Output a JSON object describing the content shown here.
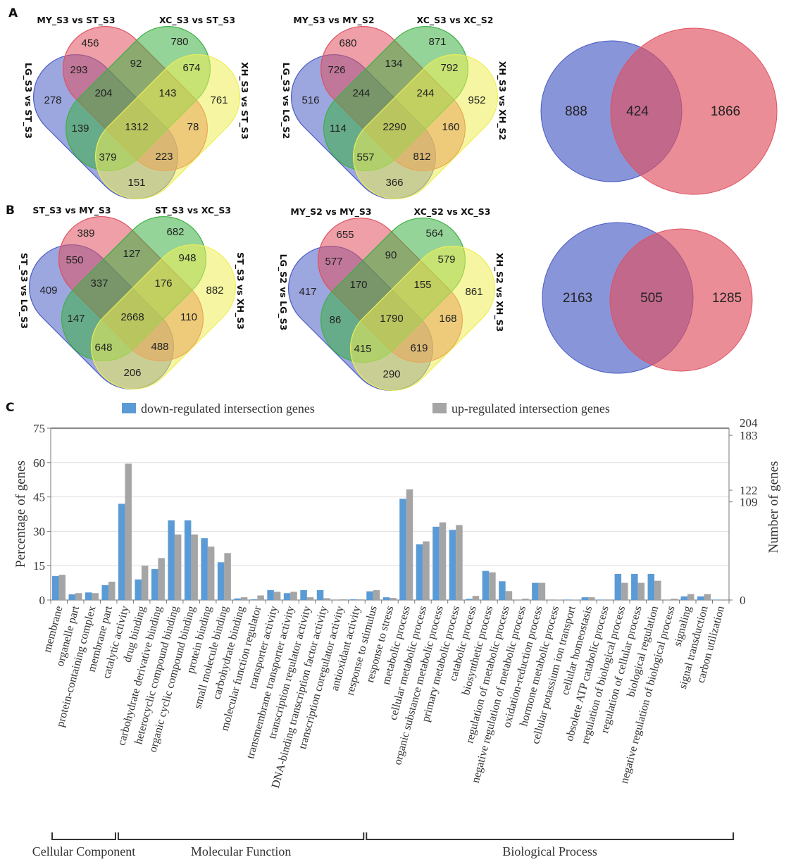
{
  "panels": {
    "a": "A",
    "b": "B",
    "c": "C"
  },
  "colors": {
    "set1": "#4a5cc4",
    "set2": "#e0505f",
    "set3": "#3cb043",
    "set4": "#eeee55",
    "down": "#5b9bd5",
    "up": "#a5a5a5"
  },
  "chart_data": [
    {
      "type": "venn",
      "panel": "A",
      "sets": [
        "LG_S3 vs ST_S3",
        "MY_S3 vs ST_S3",
        "XC_S3 vs ST_S3",
        "XH_S3 vs ST_S3"
      ],
      "regions": [
        456,
        780,
        293,
        92,
        674,
        278,
        204,
        143,
        761,
        139,
        1312,
        78,
        379,
        223,
        151
      ]
    },
    {
      "type": "venn",
      "panel": "A",
      "sets": [
        "LG_S3 vs LG_S2",
        "MY_S3 vs MY_S2",
        "XC_S3 vs XC_S2",
        "XH_S3 vs XH_S2"
      ],
      "regions": [
        680,
        871,
        726,
        134,
        792,
        516,
        244,
        244,
        952,
        114,
        2290,
        160,
        557,
        812,
        366
      ]
    },
    {
      "type": "venn",
      "panel": "A",
      "regions": [
        888,
        424,
        1866
      ]
    },
    {
      "type": "venn",
      "panel": "B",
      "sets": [
        "ST_S3 vs LG_S3",
        "ST_S3 vs MY_S3",
        "ST_S3 vs XC_S3",
        "ST_S3 vs XH_S3"
      ],
      "regions": [
        389,
        682,
        550,
        127,
        948,
        409,
        337,
        176,
        882,
        147,
        2668,
        110,
        648,
        488,
        206
      ]
    },
    {
      "type": "venn",
      "panel": "B",
      "sets": [
        "LG_S2 vs LG_S3",
        "MY_S2 vs MY_S3",
        "XC_S2 vs XC_S3",
        "XH_S2 vs XH_S3"
      ],
      "regions": [
        655,
        564,
        577,
        90,
        579,
        417,
        170,
        155,
        861,
        86,
        1790,
        168,
        415,
        619,
        290
      ]
    },
    {
      "type": "venn",
      "panel": "B",
      "regions": [
        2163,
        505,
        1285
      ]
    },
    {
      "type": "bar",
      "panel": "C",
      "ylabel": "Percentage of genes",
      "y2label": "Number of genes",
      "ylim": [
        0,
        75
      ],
      "yticks": [
        0,
        15,
        30,
        45,
        60,
        75
      ],
      "y2ticks": [
        0,
        109,
        122,
        183,
        204
      ],
      "grid": true,
      "legend_position": "top",
      "categories": [
        "membrane",
        "organelle part",
        "protein-containing complex",
        "membrane part",
        "catalytic activity",
        "drug binding",
        "carbohydrate derivative binding",
        "heterocyclic compound binding",
        "organic cyclic compound binding",
        "protein binding",
        "small molecule binding",
        "carbohydrate binding",
        "molecular function regulator",
        "transporter activity",
        "transmembrane transporter activity",
        "transcription regulator activity",
        "DNA-binding transcription factor activity",
        "transcription coregulator activity",
        "antioxidant activity",
        "response to stimulus",
        "response to stress",
        "metabolic process",
        "cellular metabolic process",
        "organic substance metabolic process",
        "primary metabolic process",
        "catabolic process",
        "biosynthetic process",
        "regulation of metabolic process",
        "negative regulation of metabolic process",
        "oxidation-reduction process",
        "hormone metabolic process",
        "cellular potassium ion transport",
        "cellular homeostasis",
        "obsolete ATP catabolic process",
        "regulation of biological process",
        "regulation of cellular process",
        "biological regulation",
        "negative regulation of biological process",
        "signaling",
        "signal transduction",
        "carbon utilization"
      ],
      "series": [
        {
          "name": "down-regulated intersection genes",
          "values": [
            10.5,
            2.5,
            3.3,
            6.5,
            42,
            9,
            13.5,
            34.8,
            34.8,
            27,
            16.5,
            0.7,
            0.3,
            4.3,
            3,
            4.3,
            4.3,
            0,
            0.3,
            3.8,
            1.2,
            44.2,
            24.3,
            32,
            30.6,
            0.5,
            12.7,
            8.2,
            0,
            7.5,
            0,
            0.2,
            1.2,
            0.2,
            11.4,
            11.4,
            11.4,
            0,
            1.6,
            1.6,
            0.2
          ]
        },
        {
          "name": "up-regulated intersection genes",
          "values": [
            11,
            3,
            3,
            8,
            59.5,
            15,
            18.3,
            28.6,
            28.6,
            23.3,
            20.5,
            1.2,
            2,
            3.6,
            3.6,
            1.2,
            0.8,
            0.3,
            0.3,
            4.3,
            0.9,
            48.3,
            25.6,
            33.9,
            32.7,
            1.8,
            12.1,
            3.9,
            0.6,
            7.5,
            0.2,
            0.2,
            1.2,
            0,
            7.5,
            7.5,
            8.4,
            0.6,
            2.6,
            2.6,
            0
          ]
        }
      ],
      "groups": [
        {
          "label": "Cellular Component",
          "from": 0,
          "to": 3
        },
        {
          "label": "Molecular Function",
          "from": 4,
          "to": 18
        },
        {
          "label": "Biological Process",
          "from": 19,
          "to": 40
        }
      ]
    }
  ]
}
